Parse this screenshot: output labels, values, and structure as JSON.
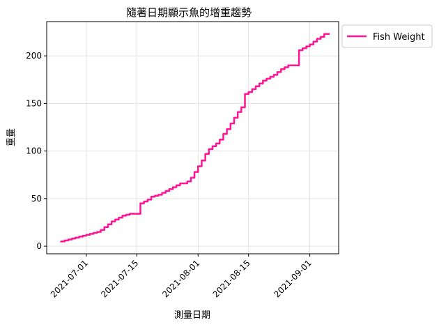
{
  "chart_data": {
    "type": "line",
    "title": "隨著日期顯示魚的增重趨勢",
    "xlabel": "測量日期",
    "ylabel": "重量",
    "x_ticks": [
      "2021-07-01",
      "2021-07-15",
      "2021-08-01",
      "2021-08-15",
      "2021-09-01"
    ],
    "y_ticks": [
      0,
      50,
      100,
      150,
      200
    ],
    "xlim": [
      "2021-06-20",
      "2021-09-09"
    ],
    "ylim": [
      -8,
      236
    ],
    "grid": true,
    "legend_position": "outside-top-right",
    "series": [
      {
        "name": "Fish Weight",
        "color": "#ff1493",
        "x": [
          "2021-06-24",
          "2021-06-25",
          "2021-06-26",
          "2021-06-27",
          "2021-06-28",
          "2021-06-29",
          "2021-06-30",
          "2021-07-01",
          "2021-07-02",
          "2021-07-03",
          "2021-07-04",
          "2021-07-05",
          "2021-07-06",
          "2021-07-07",
          "2021-07-08",
          "2021-07-09",
          "2021-07-10",
          "2021-07-11",
          "2021-07-12",
          "2021-07-13",
          "2021-07-16",
          "2021-07-17",
          "2021-07-18",
          "2021-07-19",
          "2021-07-20",
          "2021-07-21",
          "2021-07-22",
          "2021-07-23",
          "2021-07-24",
          "2021-07-25",
          "2021-07-26",
          "2021-07-27",
          "2021-07-28",
          "2021-07-29",
          "2021-07-30",
          "2021-07-31",
          "2021-08-01",
          "2021-08-02",
          "2021-08-03",
          "2021-08-04",
          "2021-08-05",
          "2021-08-06",
          "2021-08-07",
          "2021-08-08",
          "2021-08-09",
          "2021-08-10",
          "2021-08-11",
          "2021-08-12",
          "2021-08-13",
          "2021-08-14",
          "2021-08-15",
          "2021-08-16",
          "2021-08-17",
          "2021-08-18",
          "2021-08-19",
          "2021-08-20",
          "2021-08-21",
          "2021-08-22",
          "2021-08-23",
          "2021-08-24",
          "2021-08-25",
          "2021-08-26",
          "2021-08-29",
          "2021-08-30",
          "2021-08-31",
          "2021-09-01",
          "2021-09-02",
          "2021-09-03",
          "2021-09-04",
          "2021-09-05",
          "2021-09-06"
        ],
        "y": [
          4,
          5,
          6,
          7,
          8,
          9,
          10,
          11,
          12,
          13,
          14,
          15,
          17,
          20,
          23,
          26,
          28,
          30,
          32,
          33,
          34,
          45,
          47,
          49,
          52,
          53,
          54,
          56,
          58,
          60,
          62,
          64,
          66,
          66,
          68,
          72,
          78,
          84,
          90,
          97,
          102,
          105,
          108,
          112,
          118,
          123,
          129,
          135,
          141,
          146,
          160,
          162,
          165,
          168,
          171,
          174,
          176,
          178,
          180,
          183,
          186,
          188,
          190,
          206,
          208,
          210,
          212,
          215,
          218,
          220,
          223
        ]
      }
    ]
  }
}
